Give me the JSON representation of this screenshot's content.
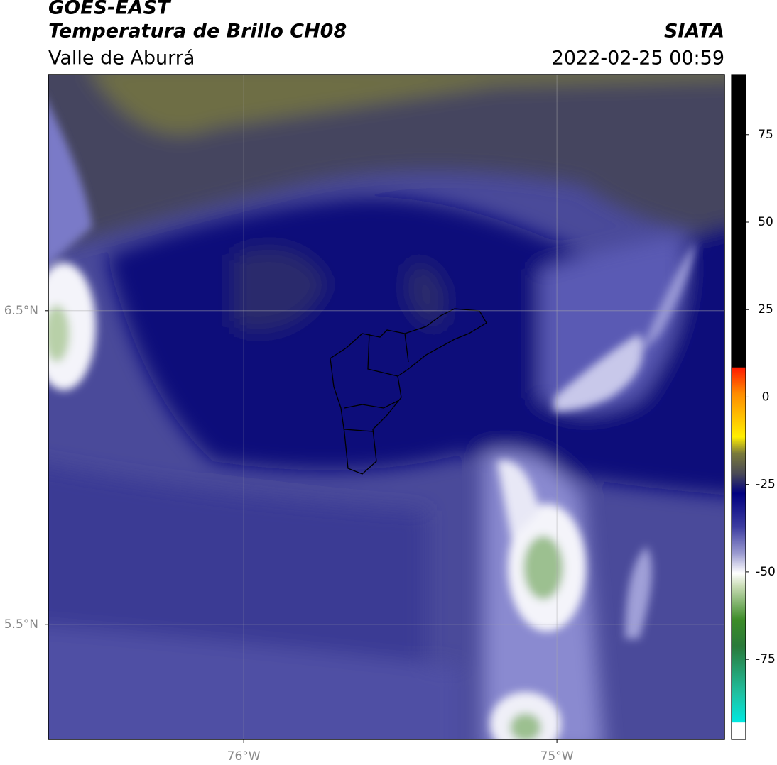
{
  "header": {
    "title": "GOES-EAST",
    "subtitle": "Temperatura de Brillo CH08",
    "source": "SIATA",
    "region": "Valle de Aburrá",
    "datetime": "2022-02-25 00:59"
  },
  "map": {
    "lat_range": [
      5.133,
      7.253
    ],
    "lon_range": [
      -76.624,
      -74.465
    ],
    "lat_ticks": [
      {
        "value": 6.5,
        "label": "6.5°N"
      },
      {
        "value": 5.5,
        "label": "5.5°N"
      }
    ],
    "lon_ticks": [
      {
        "value": -76,
        "label": "76°W"
      },
      {
        "value": -75,
        "label": "75°W"
      }
    ],
    "grid": true
  },
  "colorbar": {
    "range": [
      -97.9,
      92.2
    ],
    "ticks": [
      75,
      50,
      25,
      0,
      -25,
      -50,
      -75
    ]
  }
}
